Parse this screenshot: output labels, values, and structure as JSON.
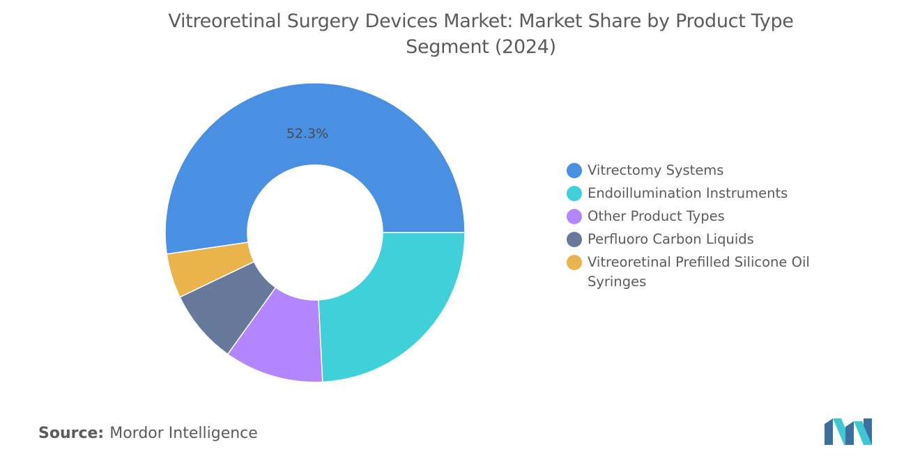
{
  "title_lines": [
    "Vitreoretinal Surgery Devices Market: Market Share by Product Type",
    "Segment (2024)"
  ],
  "source": {
    "label": "Source:",
    "text": "Mordor Intelligence"
  },
  "logo": {
    "name": "mordor-intelligence-logo-icon",
    "colors": [
      "#3a6f9e",
      "#3fc8d4"
    ]
  },
  "chart_data": {
    "type": "pie",
    "donut": true,
    "title": "Vitreoretinal Surgery Devices Market: Market Share by Product Type Segment (2024)",
    "categories": [
      "Vitrectomy Systems",
      "Endoillumination Instruments",
      "Other Product Types",
      "Perfluoro Carbon Liquids",
      "Vitreoretinal Prefilled Silicone Oil Syringes"
    ],
    "values": [
      52.3,
      24.2,
      10.7,
      8.0,
      4.8
    ],
    "colors": [
      "#4a90e2",
      "#3fd0da",
      "#b386ff",
      "#66799a",
      "#e9b44c"
    ],
    "data_labels": [
      {
        "category": "Vitrectomy Systems",
        "text": "52.3%"
      }
    ],
    "legend_position": "right"
  }
}
